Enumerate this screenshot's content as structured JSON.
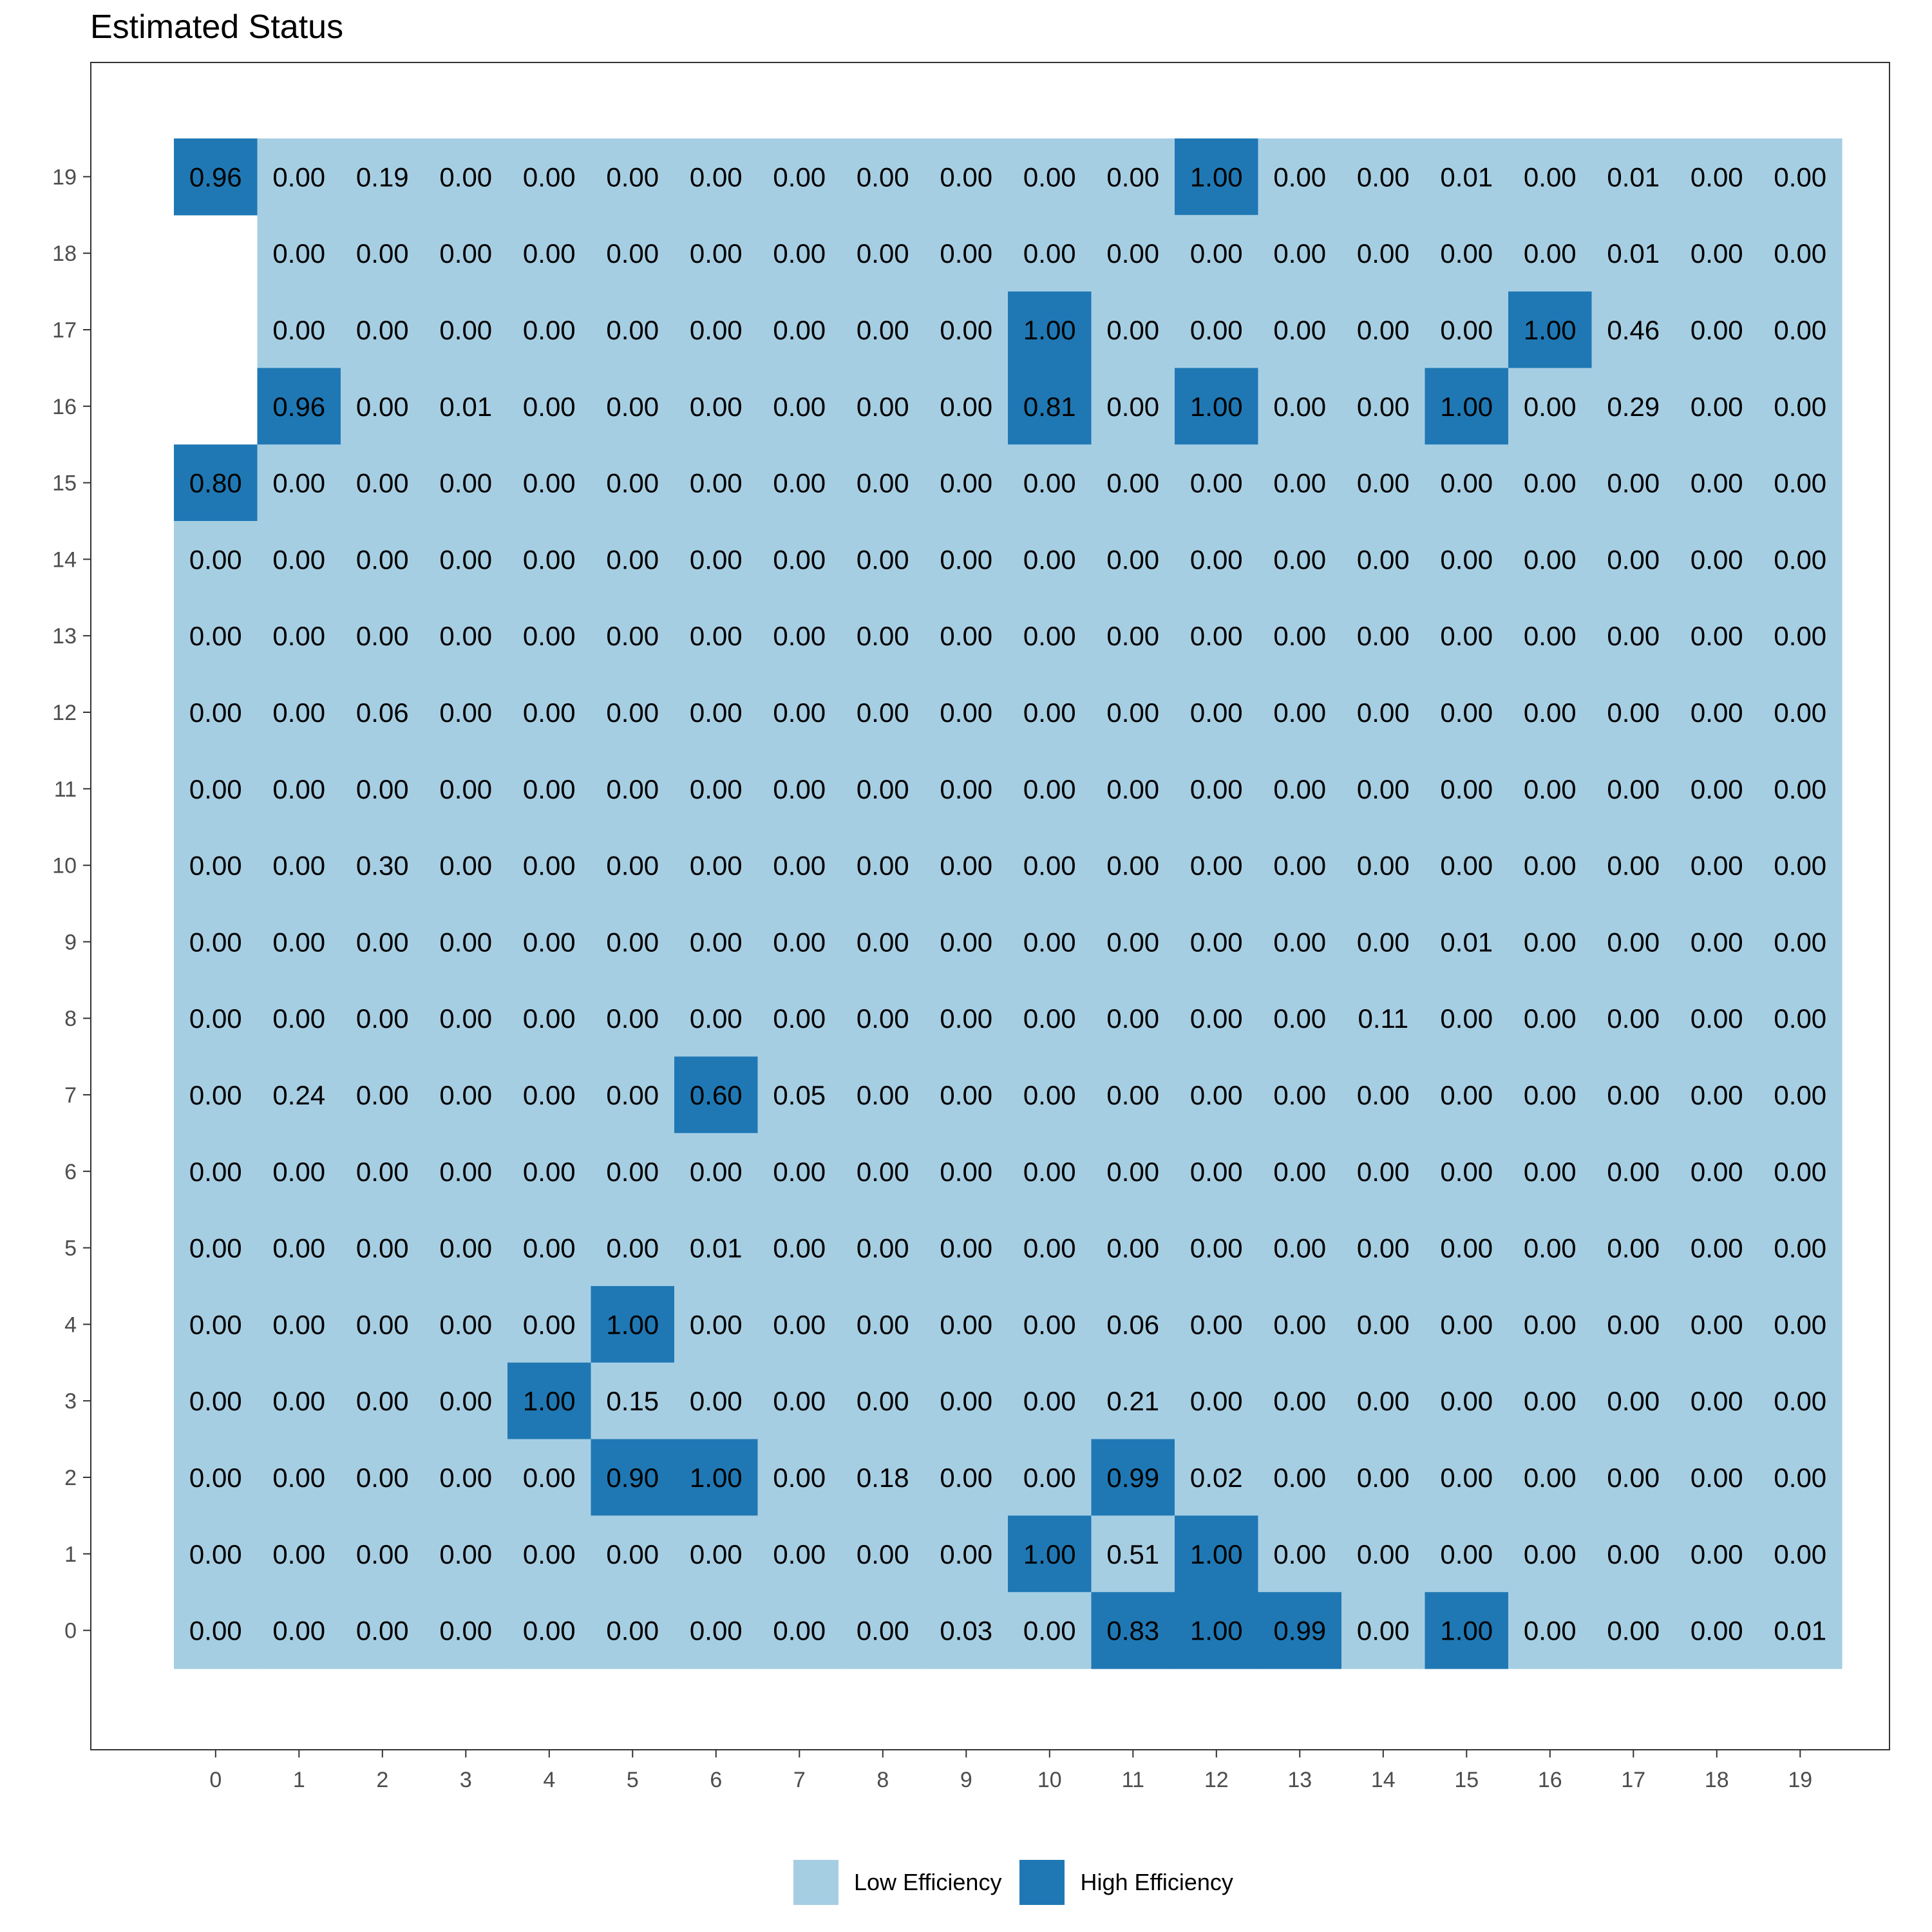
{
  "chart_data": {
    "type": "heatmap",
    "title": "Estimated Status",
    "xlabel": "",
    "ylabel": "",
    "x_ticks": [
      "0",
      "1",
      "2",
      "3",
      "4",
      "5",
      "6",
      "7",
      "8",
      "9",
      "10",
      "11",
      "12",
      "13",
      "14",
      "15",
      "16",
      "17",
      "18",
      "19"
    ],
    "y_ticks": [
      "0",
      "1",
      "2",
      "3",
      "4",
      "5",
      "6",
      "7",
      "8",
      "9",
      "10",
      "11",
      "12",
      "13",
      "14",
      "15",
      "16",
      "17",
      "18",
      "19"
    ],
    "categories": [
      "Low Efficiency",
      "High Efficiency"
    ],
    "colors": {
      "Low Efficiency": "#a6cee3",
      "High Efficiency": "#1f78b4"
    },
    "legend_position": "bottom",
    "grid": false,
    "rows_top_to_bottom_y": [
      19,
      18,
      17,
      16,
      15,
      14,
      13,
      12,
      11,
      10,
      9,
      8,
      7,
      6,
      5,
      4,
      3,
      2,
      1,
      0
    ],
    "labels": [
      [
        "0.96",
        "0.00",
        "0.19",
        "0.00",
        "0.00",
        "0.00",
        "0.00",
        "0.00",
        "0.00",
        "0.00",
        "0.00",
        "0.00",
        "1.00",
        "0.00",
        "0.00",
        "0.01",
        "0.00",
        "0.01",
        "0.00",
        "0.00"
      ],
      [
        null,
        "0.00",
        "0.00",
        "0.00",
        "0.00",
        "0.00",
        "0.00",
        "0.00",
        "0.00",
        "0.00",
        "0.00",
        "0.00",
        "0.00",
        "0.00",
        "0.00",
        "0.00",
        "0.00",
        "0.01",
        "0.00",
        "0.00"
      ],
      [
        null,
        "0.00",
        "0.00",
        "0.00",
        "0.00",
        "0.00",
        "0.00",
        "0.00",
        "0.00",
        "0.00",
        "1.00",
        "0.00",
        "0.00",
        "0.00",
        "0.00",
        "0.00",
        "1.00",
        "0.46",
        "0.00",
        "0.00"
      ],
      [
        null,
        "0.96",
        "0.00",
        "0.01",
        "0.00",
        "0.00",
        "0.00",
        "0.00",
        "0.00",
        "0.00",
        "0.81",
        "0.00",
        "1.00",
        "0.00",
        "0.00",
        "1.00",
        "0.00",
        "0.29",
        "0.00",
        "0.00"
      ],
      [
        "0.80",
        "0.00",
        "0.00",
        "0.00",
        "0.00",
        "0.00",
        "0.00",
        "0.00",
        "0.00",
        "0.00",
        "0.00",
        "0.00",
        "0.00",
        "0.00",
        "0.00",
        "0.00",
        "0.00",
        "0.00",
        "0.00",
        "0.00"
      ],
      [
        "0.00",
        "0.00",
        "0.00",
        "0.00",
        "0.00",
        "0.00",
        "0.00",
        "0.00",
        "0.00",
        "0.00",
        "0.00",
        "0.00",
        "0.00",
        "0.00",
        "0.00",
        "0.00",
        "0.00",
        "0.00",
        "0.00",
        "0.00"
      ],
      [
        "0.00",
        "0.00",
        "0.00",
        "0.00",
        "0.00",
        "0.00",
        "0.00",
        "0.00",
        "0.00",
        "0.00",
        "0.00",
        "0.00",
        "0.00",
        "0.00",
        "0.00",
        "0.00",
        "0.00",
        "0.00",
        "0.00",
        "0.00"
      ],
      [
        "0.00",
        "0.00",
        "0.06",
        "0.00",
        "0.00",
        "0.00",
        "0.00",
        "0.00",
        "0.00",
        "0.00",
        "0.00",
        "0.00",
        "0.00",
        "0.00",
        "0.00",
        "0.00",
        "0.00",
        "0.00",
        "0.00",
        "0.00"
      ],
      [
        "0.00",
        "0.00",
        "0.00",
        "0.00",
        "0.00",
        "0.00",
        "0.00",
        "0.00",
        "0.00",
        "0.00",
        "0.00",
        "0.00",
        "0.00",
        "0.00",
        "0.00",
        "0.00",
        "0.00",
        "0.00",
        "0.00",
        "0.00"
      ],
      [
        "0.00",
        "0.00",
        "0.30",
        "0.00",
        "0.00",
        "0.00",
        "0.00",
        "0.00",
        "0.00",
        "0.00",
        "0.00",
        "0.00",
        "0.00",
        "0.00",
        "0.00",
        "0.00",
        "0.00",
        "0.00",
        "0.00",
        "0.00"
      ],
      [
        "0.00",
        "0.00",
        "0.00",
        "0.00",
        "0.00",
        "0.00",
        "0.00",
        "0.00",
        "0.00",
        "0.00",
        "0.00",
        "0.00",
        "0.00",
        "0.00",
        "0.00",
        "0.01",
        "0.00",
        "0.00",
        "0.00",
        "0.00"
      ],
      [
        "0.00",
        "0.00",
        "0.00",
        "0.00",
        "0.00",
        "0.00",
        "0.00",
        "0.00",
        "0.00",
        "0.00",
        "0.00",
        "0.00",
        "0.00",
        "0.00",
        "0.11",
        "0.00",
        "0.00",
        "0.00",
        "0.00",
        "0.00"
      ],
      [
        "0.00",
        "0.24",
        "0.00",
        "0.00",
        "0.00",
        "0.00",
        "0.60",
        "0.05",
        "0.00",
        "0.00",
        "0.00",
        "0.00",
        "0.00",
        "0.00",
        "0.00",
        "0.00",
        "0.00",
        "0.00",
        "0.00",
        "0.00"
      ],
      [
        "0.00",
        "0.00",
        "0.00",
        "0.00",
        "0.00",
        "0.00",
        "0.00",
        "0.00",
        "0.00",
        "0.00",
        "0.00",
        "0.00",
        "0.00",
        "0.00",
        "0.00",
        "0.00",
        "0.00",
        "0.00",
        "0.00",
        "0.00"
      ],
      [
        "0.00",
        "0.00",
        "0.00",
        "0.00",
        "0.00",
        "0.00",
        "0.01",
        "0.00",
        "0.00",
        "0.00",
        "0.00",
        "0.00",
        "0.00",
        "0.00",
        "0.00",
        "0.00",
        "0.00",
        "0.00",
        "0.00",
        "0.00"
      ],
      [
        "0.00",
        "0.00",
        "0.00",
        "0.00",
        "0.00",
        "1.00",
        "0.00",
        "0.00",
        "0.00",
        "0.00",
        "0.00",
        "0.06",
        "0.00",
        "0.00",
        "0.00",
        "0.00",
        "0.00",
        "0.00",
        "0.00",
        "0.00"
      ],
      [
        "0.00",
        "0.00",
        "0.00",
        "0.00",
        "1.00",
        "0.15",
        "0.00",
        "0.00",
        "0.00",
        "0.00",
        "0.00",
        "0.21",
        "0.00",
        "0.00",
        "0.00",
        "0.00",
        "0.00",
        "0.00",
        "0.00",
        "0.00"
      ],
      [
        "0.00",
        "0.00",
        "0.00",
        "0.00",
        "0.00",
        "0.90",
        "1.00",
        "0.00",
        "0.18",
        "0.00",
        "0.00",
        "0.99",
        "0.02",
        "0.00",
        "0.00",
        "0.00",
        "0.00",
        "0.00",
        "0.00",
        "0.00"
      ],
      [
        "0.00",
        "0.00",
        "0.00",
        "0.00",
        "0.00",
        "0.00",
        "0.00",
        "0.00",
        "0.00",
        "0.00",
        "1.00",
        "0.51",
        "1.00",
        "0.00",
        "0.00",
        "0.00",
        "0.00",
        "0.00",
        "0.00",
        "0.00"
      ],
      [
        "0.00",
        "0.00",
        "0.00",
        "0.00",
        "0.00",
        "0.00",
        "0.00",
        "0.00",
        "0.00",
        "0.03",
        "0.00",
        "0.83",
        "1.00",
        "0.99",
        "0.00",
        "1.00",
        "0.00",
        "0.00",
        "0.00",
        "0.01"
      ]
    ],
    "status": [
      [
        1,
        0,
        0,
        0,
        0,
        0,
        0,
        0,
        0,
        0,
        0,
        0,
        1,
        0,
        0,
        0,
        0,
        0,
        0,
        0
      ],
      [
        null,
        0,
        0,
        0,
        0,
        0,
        0,
        0,
        0,
        0,
        0,
        0,
        0,
        0,
        0,
        0,
        0,
        0,
        0,
        0
      ],
      [
        null,
        0,
        0,
        0,
        0,
        0,
        0,
        0,
        0,
        0,
        1,
        0,
        0,
        0,
        0,
        0,
        1,
        0,
        0,
        0
      ],
      [
        null,
        1,
        0,
        0,
        0,
        0,
        0,
        0,
        0,
        0,
        1,
        0,
        1,
        0,
        0,
        1,
        0,
        0,
        0,
        0
      ],
      [
        1,
        0,
        0,
        0,
        0,
        0,
        0,
        0,
        0,
        0,
        0,
        0,
        0,
        0,
        0,
        0,
        0,
        0,
        0,
        0
      ],
      [
        0,
        0,
        0,
        0,
        0,
        0,
        0,
        0,
        0,
        0,
        0,
        0,
        0,
        0,
        0,
        0,
        0,
        0,
        0,
        0
      ],
      [
        0,
        0,
        0,
        0,
        0,
        0,
        0,
        0,
        0,
        0,
        0,
        0,
        0,
        0,
        0,
        0,
        0,
        0,
        0,
        0
      ],
      [
        0,
        0,
        0,
        0,
        0,
        0,
        0,
        0,
        0,
        0,
        0,
        0,
        0,
        0,
        0,
        0,
        0,
        0,
        0,
        0
      ],
      [
        0,
        0,
        0,
        0,
        0,
        0,
        0,
        0,
        0,
        0,
        0,
        0,
        0,
        0,
        0,
        0,
        0,
        0,
        0,
        0
      ],
      [
        0,
        0,
        0,
        0,
        0,
        0,
        0,
        0,
        0,
        0,
        0,
        0,
        0,
        0,
        0,
        0,
        0,
        0,
        0,
        0
      ],
      [
        0,
        0,
        0,
        0,
        0,
        0,
        0,
        0,
        0,
        0,
        0,
        0,
        0,
        0,
        0,
        0,
        0,
        0,
        0,
        0
      ],
      [
        0,
        0,
        0,
        0,
        0,
        0,
        0,
        0,
        0,
        0,
        0,
        0,
        0,
        0,
        0,
        0,
        0,
        0,
        0,
        0
      ],
      [
        0,
        0,
        0,
        0,
        0,
        0,
        1,
        0,
        0,
        0,
        0,
        0,
        0,
        0,
        0,
        0,
        0,
        0,
        0,
        0
      ],
      [
        0,
        0,
        0,
        0,
        0,
        0,
        0,
        0,
        0,
        0,
        0,
        0,
        0,
        0,
        0,
        0,
        0,
        0,
        0,
        0
      ],
      [
        0,
        0,
        0,
        0,
        0,
        0,
        0,
        0,
        0,
        0,
        0,
        0,
        0,
        0,
        0,
        0,
        0,
        0,
        0,
        0
      ],
      [
        0,
        0,
        0,
        0,
        0,
        1,
        0,
        0,
        0,
        0,
        0,
        0,
        0,
        0,
        0,
        0,
        0,
        0,
        0,
        0
      ],
      [
        0,
        0,
        0,
        0,
        1,
        0,
        0,
        0,
        0,
        0,
        0,
        0,
        0,
        0,
        0,
        0,
        0,
        0,
        0,
        0
      ],
      [
        0,
        0,
        0,
        0,
        0,
        1,
        1,
        0,
        0,
        0,
        0,
        1,
        0,
        0,
        0,
        0,
        0,
        0,
        0,
        0
      ],
      [
        0,
        0,
        0,
        0,
        0,
        0,
        0,
        0,
        0,
        0,
        1,
        0,
        1,
        0,
        0,
        0,
        0,
        0,
        0,
        0
      ],
      [
        0,
        0,
        0,
        0,
        0,
        0,
        0,
        0,
        0,
        0,
        0,
        1,
        1,
        1,
        0,
        1,
        0,
        0,
        0,
        0
      ]
    ]
  }
}
